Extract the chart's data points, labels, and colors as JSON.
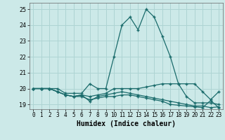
{
  "xlabel": "Humidex (Indice chaleur)",
  "xlim": [
    -0.5,
    23.5
  ],
  "ylim": [
    18.7,
    25.4
  ],
  "yticks": [
    19,
    20,
    21,
    22,
    23,
    24,
    25
  ],
  "xticks": [
    0,
    1,
    2,
    3,
    4,
    5,
    6,
    7,
    8,
    9,
    10,
    11,
    12,
    13,
    14,
    15,
    16,
    17,
    18,
    19,
    20,
    21,
    22,
    23
  ],
  "background_color": "#cce9e8",
  "grid_color": "#aed4d3",
  "line_color": "#1a6b6b",
  "line1_x": [
    0,
    1,
    2,
    3,
    4,
    5,
    6,
    7,
    8,
    9,
    10,
    11,
    12,
    13,
    14,
    15,
    16,
    17,
    18,
    19,
    20,
    21,
    22,
    23
  ],
  "line1_y": [
    20.0,
    20.0,
    20.0,
    20.0,
    19.7,
    19.7,
    19.7,
    20.3,
    20.0,
    20.0,
    22.0,
    24.0,
    24.5,
    23.7,
    25.0,
    24.5,
    23.3,
    22.0,
    20.3,
    20.3,
    20.3,
    19.8,
    19.3,
    19.8
  ],
  "line2_x": [
    0,
    1,
    2,
    3,
    4,
    5,
    6,
    7,
    8,
    9,
    10,
    11,
    12,
    13,
    14,
    15,
    16,
    17,
    18,
    19,
    20,
    21,
    22,
    23
  ],
  "line2_y": [
    20.0,
    20.0,
    20.0,
    19.8,
    19.6,
    19.5,
    19.6,
    19.5,
    19.6,
    19.7,
    20.0,
    20.0,
    20.0,
    20.0,
    20.1,
    20.2,
    20.3,
    20.3,
    20.3,
    19.5,
    19.1,
    19.1,
    19.1,
    19.0
  ],
  "line3_x": [
    0,
    1,
    2,
    3,
    4,
    5,
    6,
    7,
    8,
    9,
    10,
    11,
    12,
    13,
    14,
    15,
    16,
    17,
    18,
    19,
    20,
    21,
    22,
    23
  ],
  "line3_y": [
    20.0,
    20.0,
    20.0,
    19.8,
    19.6,
    19.5,
    19.6,
    19.2,
    19.5,
    19.6,
    19.7,
    19.8,
    19.7,
    19.6,
    19.5,
    19.4,
    19.3,
    19.2,
    19.1,
    19.0,
    18.9,
    18.9,
    18.8,
    18.85
  ],
  "line4_x": [
    0,
    1,
    2,
    3,
    4,
    5,
    6,
    7,
    8,
    9,
    10,
    11,
    12,
    13,
    14,
    15,
    16,
    17,
    18,
    19,
    20,
    21,
    22,
    23
  ],
  "line4_y": [
    20.0,
    20.0,
    20.0,
    19.8,
    19.6,
    19.5,
    19.5,
    19.3,
    19.4,
    19.5,
    19.5,
    19.6,
    19.6,
    19.5,
    19.4,
    19.3,
    19.2,
    19.0,
    18.95,
    18.9,
    18.85,
    18.8,
    19.25,
    18.8
  ]
}
